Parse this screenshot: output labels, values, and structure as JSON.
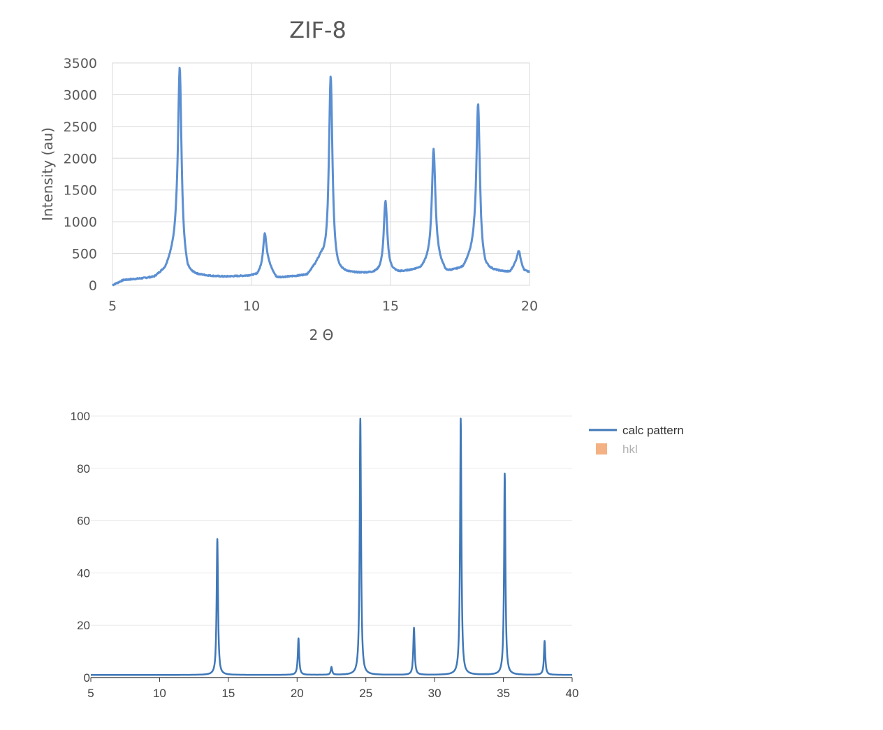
{
  "chart_data": [
    {
      "type": "line",
      "title": "ZIF-8",
      "xlabel": "2 Θ",
      "ylabel": "Intensity (au)",
      "xlim": [
        5,
        20
      ],
      "ylim": [
        0,
        3500
      ],
      "xticks": [
        5,
        10,
        15,
        20
      ],
      "yticks": [
        0,
        500,
        1000,
        1500,
        2000,
        2500,
        3000,
        3500
      ],
      "grid": true,
      "legend": "none",
      "color": "#5b8fd2",
      "baseline": [
        [
          5.0,
          0
        ],
        [
          5.4,
          80
        ],
        [
          6.0,
          100
        ],
        [
          6.5,
          120
        ],
        [
          6.9,
          240
        ],
        [
          7.3,
          600
        ],
        [
          7.7,
          150
        ],
        [
          9.0,
          130
        ],
        [
          10.2,
          150
        ],
        [
          10.6,
          300
        ],
        [
          10.9,
          110
        ],
        [
          12.0,
          150
        ],
        [
          12.5,
          400
        ],
        [
          13.1,
          180
        ],
        [
          14.4,
          180
        ],
        [
          14.9,
          200
        ],
        [
          15.3,
          190
        ],
        [
          16.1,
          250
        ],
        [
          16.6,
          450
        ],
        [
          17.0,
          190
        ],
        [
          17.6,
          250
        ],
        [
          18.0,
          500
        ],
        [
          18.4,
          220
        ],
        [
          19.3,
          200
        ],
        [
          19.6,
          400
        ],
        [
          19.8,
          220
        ],
        [
          20.0,
          200
        ]
      ],
      "peaks": [
        {
          "x": 7.42,
          "y": 3430
        },
        {
          "x": 10.48,
          "y": 810
        },
        {
          "x": 12.85,
          "y": 3290
        },
        {
          "x": 14.82,
          "y": 1320
        },
        {
          "x": 16.55,
          "y": 2130
        },
        {
          "x": 18.15,
          "y": 2850
        },
        {
          "x": 19.62,
          "y": 530
        }
      ]
    },
    {
      "type": "line",
      "title": "",
      "xlabel": "",
      "ylabel": "",
      "xlim": [
        5,
        40
      ],
      "ylim": [
        0,
        100
      ],
      "xticks": [
        5,
        10,
        15,
        20,
        25,
        30,
        35,
        40
      ],
      "yticks": [
        0,
        20,
        40,
        60,
        80,
        100
      ],
      "grid": true,
      "legend": "top-right",
      "series": [
        {
          "name": "calc pattern",
          "color": "#3f78b8"
        },
        {
          "name": "hkl",
          "color": "#f4b183"
        }
      ],
      "baseline": 1,
      "peaks": [
        {
          "x": 14.2,
          "y": 53
        },
        {
          "x": 20.1,
          "y": 15
        },
        {
          "x": 22.5,
          "y": 4
        },
        {
          "x": 24.6,
          "y": 99
        },
        {
          "x": 28.5,
          "y": 19
        },
        {
          "x": 31.9,
          "y": 99
        },
        {
          "x": 35.1,
          "y": 78
        },
        {
          "x": 38.0,
          "y": 14
        }
      ]
    }
  ]
}
